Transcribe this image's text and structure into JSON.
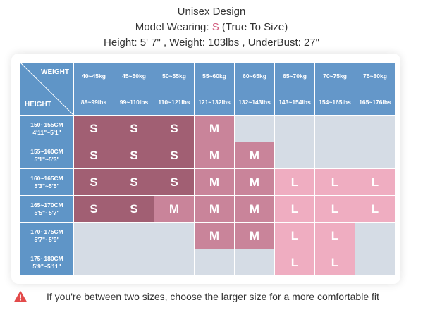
{
  "header": {
    "title": "Unisex Design",
    "model_label": "Model Wearing: ",
    "model_size": "S",
    "model_note": " (True To Size)",
    "measurements": "Height: 5' 7\" , Weight: 103lbs ,  UnderBust: 27\""
  },
  "table": {
    "weight_label": "WEIGHT",
    "height_label": "HEIGHT",
    "weights_kg": [
      "40~45kg",
      "45~50kg",
      "50~55kg",
      "55~60kg",
      "60~65kg",
      "65~70kg",
      "70~75kg",
      "75~80kg"
    ],
    "weights_lbs": [
      "88~99lbs",
      "99~110lbs",
      "110~121lbs",
      "121~132lbs",
      "132~143lbs",
      "143~154lbs",
      "154~165lbs",
      "165~176lbs"
    ],
    "rows": [
      {
        "cm": "150~155CM",
        "ft": "4'11\"~5'1\"",
        "sizes": [
          "S",
          "S",
          "S",
          "M",
          "",
          "",
          "",
          ""
        ]
      },
      {
        "cm": "155~160CM",
        "ft": "5'1\"~5'3\"",
        "sizes": [
          "S",
          "S",
          "S",
          "M",
          "M",
          "",
          "",
          ""
        ]
      },
      {
        "cm": "160~165CM",
        "ft": "5'3\"~5'5\"",
        "sizes": [
          "S",
          "S",
          "S",
          "M",
          "M",
          "L",
          "L",
          "L"
        ]
      },
      {
        "cm": "165~170CM",
        "ft": "5'5\"~5'7\"",
        "sizes": [
          "S",
          "S",
          "M",
          "M",
          "M",
          "L",
          "L",
          "L"
        ]
      },
      {
        "cm": "170~175CM",
        "ft": "5'7\"~5'9\"",
        "sizes": [
          "",
          "",
          "",
          "M",
          "M",
          "L",
          "L",
          ""
        ]
      },
      {
        "cm": "175~180CM",
        "ft": "5'9\"~5'11\"",
        "sizes": [
          "",
          "",
          "",
          "",
          "",
          "L",
          "L",
          ""
        ]
      }
    ]
  },
  "colors": {
    "S": "#a15f73",
    "M": "#c9849a",
    "L": "#efadc1",
    "empty": "#d5dce5",
    "header_blue": "#6497c9",
    "warning": "#e34b4b"
  },
  "note": {
    "icon": "warning-icon",
    "text": "If you're between two sizes, choose the larger size for a more comfortable fit"
  }
}
